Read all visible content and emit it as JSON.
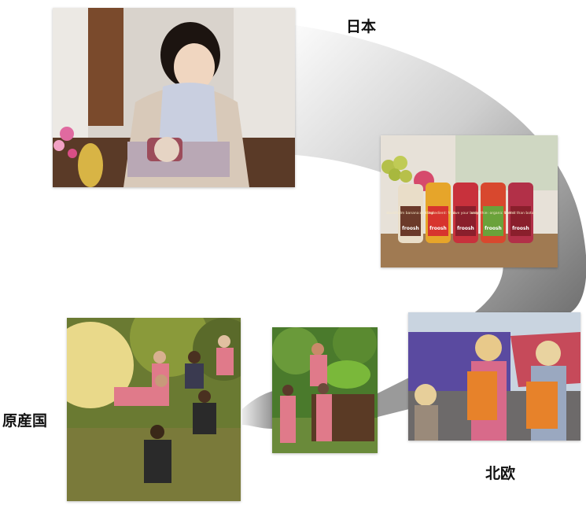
{
  "labels": {
    "japan": "日本",
    "nordic": "北欧",
    "origin": "原産国"
  },
  "bottles": [
    {
      "text": "stockholm banana: bottled."
    },
    {
      "text": "one ingredient: fruit."
    },
    {
      "text": "love your body."
    },
    {
      "text": "smoothie: organic fiber it"
    },
    {
      "text": "better than botox."
    }
  ],
  "brand": "froosh",
  "colors": {
    "flow_dark": "#6f6f6f",
    "flow_light": "#f4f4f4",
    "label_text": "#111111"
  }
}
